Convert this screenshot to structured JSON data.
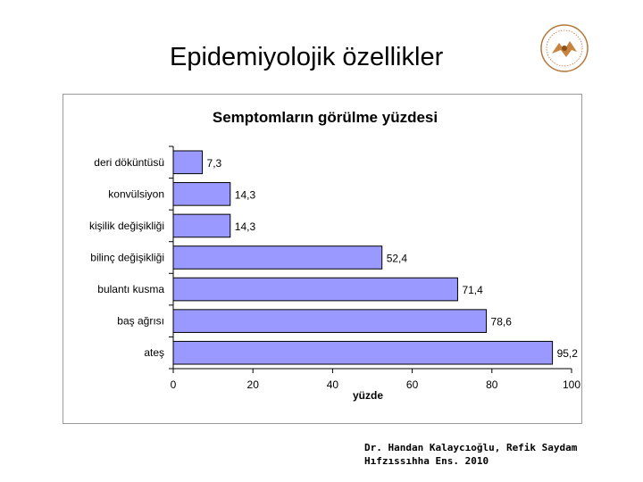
{
  "slide": {
    "title": "Epidemiyolojik özellikler",
    "footer_line1": "Dr. Handan Kalaycıoğlu, Refik Saydam",
    "footer_line2": "Hıfzıssıhha Ens. 2010"
  },
  "logo": {
    "icon": "institute-seal-icon",
    "color": "#b5763a"
  },
  "chart_data": {
    "type": "bar",
    "orientation": "horizontal",
    "title": "Semptomların görülme yüzdesi",
    "xlabel": "yüzde",
    "ylabel": "",
    "categories": [
      "deri döküntüsü",
      "konvülsiyon",
      "kişilik değişikliği",
      "bilinç değişikliği",
      "bulantı kusma",
      "baş ağrısı",
      "ateş"
    ],
    "values": [
      7.3,
      14.3,
      14.3,
      52.4,
      71.4,
      78.6,
      95.2
    ],
    "value_labels": [
      "7,3",
      "14,3",
      "14,3",
      "52,4",
      "71,4",
      "78,6",
      "95,2"
    ],
    "xlim": [
      0,
      100
    ],
    "xticks": [
      0,
      20,
      40,
      60,
      80,
      100
    ],
    "grid": false,
    "legend": "none",
    "bar_color": "#9999ff",
    "bar_edge_color": "#000000"
  }
}
